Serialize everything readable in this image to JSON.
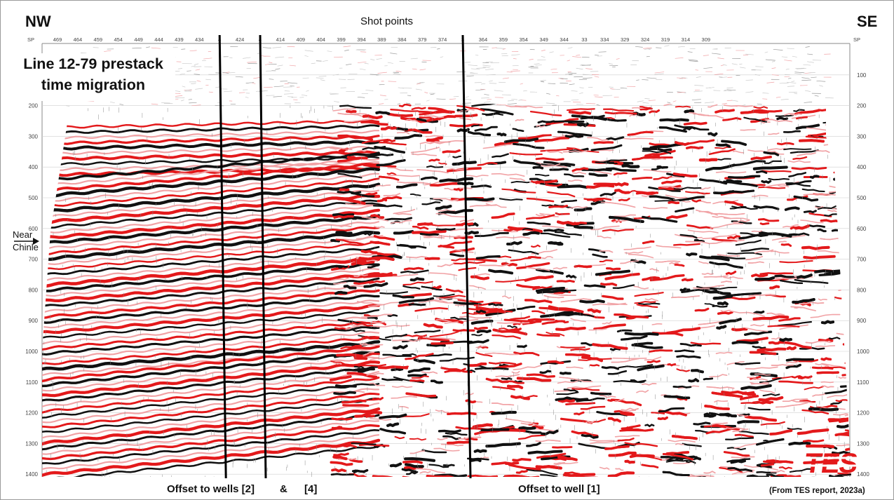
{
  "header": {
    "left_direction": "NW",
    "right_direction": "SE",
    "axis_title": "Shot points",
    "axis_prefix_left": "SP",
    "axis_prefix_right": "SP"
  },
  "panel_title": {
    "line1": "Line 12-79 prestack",
    "line2": "time migration"
  },
  "shot_point_labels": [
    "469",
    "464",
    "459",
    "454",
    "449",
    "444",
    "439",
    "434",
    "4",
    "424",
    "4",
    "414",
    "409",
    "404",
    "399",
    "394",
    "389",
    "384",
    "379",
    "374",
    "3",
    "364",
    "359",
    "354",
    "349",
    "344",
    "33",
    "334",
    "329",
    "324",
    "319",
    "314",
    "309"
  ],
  "time_labels_left": [
    "",
    "200",
    "300",
    "400",
    "500",
    "600",
    "700",
    "800",
    "900",
    "1000",
    "1100",
    "1200",
    "1300",
    "1400"
  ],
  "time_labels_right": [
    "100",
    "200",
    "300",
    "400",
    "500",
    "600",
    "700",
    "800",
    "900",
    "1000",
    "1100",
    "1200",
    "1300",
    "1400"
  ],
  "horizon_annotation": {
    "line1": "Near",
    "line2": "Chinle"
  },
  "well_lines": [
    {
      "name": "well-2",
      "shot_point": 429
    },
    {
      "name": "well-4",
      "shot_point": 419
    },
    {
      "name": "well-1",
      "shot_point": 369
    }
  ],
  "bottom_labels": {
    "offset_to_wells": "Offset to wells  [2]",
    "ampersand": "&",
    "well_4": "[4]",
    "offset_to_well_1": "Offset to well [1]"
  },
  "credit": "(From TES report, 2023a)",
  "logo_text": "TES",
  "colors": {
    "wiggle_red": "#e3191b",
    "wiggle_black": "#111111",
    "wiggle_pink": "#f1a3a6",
    "logo_red": "#e3191b"
  }
}
